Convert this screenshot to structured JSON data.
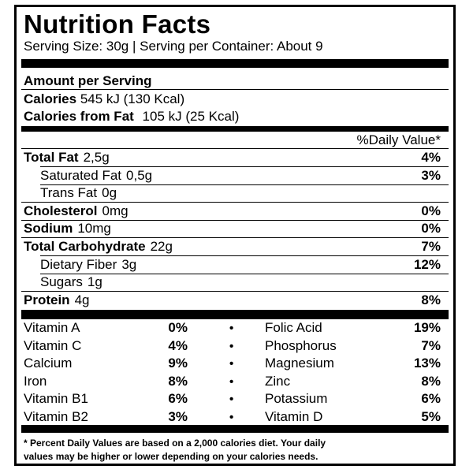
{
  "title": "Nutrition Facts",
  "serving_line": "Serving Size: 30g | Serving per Container: About 9",
  "amount_per_serving": "Amount per Serving",
  "calories": {
    "label": "Calories",
    "value": "545 kJ  (130 Kcal)"
  },
  "calories_from_fat": {
    "label": "Calories from Fat",
    "value": "105 kJ  (25 Kcal)"
  },
  "daily_value_header": "%Daily Value*",
  "nutrients": [
    {
      "label": "Total Fat",
      "amount": "2,5g",
      "pct": "4%",
      "bold": true
    },
    {
      "label": "Saturated Fat",
      "amount": "0,5g",
      "pct": "3%",
      "bold": false
    },
    {
      "label": "Trans Fat",
      "amount": "0g",
      "pct": "",
      "bold": false
    },
    {
      "label": "Cholesterol",
      "amount": "0mg",
      "pct": "0%",
      "bold": true
    },
    {
      "label": "Sodium",
      "amount": "10mg",
      "pct": "0%",
      "bold": true
    },
    {
      "label": "Total Carbohydrate",
      "amount": "22g",
      "pct": "7%",
      "bold": true
    },
    {
      "label": "Dietary Fiber",
      "amount": "3g",
      "pct": "12%",
      "bold": false
    },
    {
      "label": "Sugars",
      "amount": "1g",
      "pct": "",
      "bold": false
    },
    {
      "label": "Protein",
      "amount": "4g",
      "pct": "8%",
      "bold": true
    }
  ],
  "vitamins": [
    {
      "left_name": "Vitamin A",
      "left_pct": "0%",
      "bullet": "•",
      "right_name": "Folic Acid",
      "right_pct": "19%"
    },
    {
      "left_name": "Vitamin C",
      "left_pct": "4%",
      "bullet": "•",
      "right_name": "Phosphorus",
      "right_pct": "7%"
    },
    {
      "left_name": "Calcium",
      "left_pct": "9%",
      "bullet": "•",
      "right_name": "Magnesium",
      "right_pct": "13%"
    },
    {
      "left_name": "Iron",
      "left_pct": "8%",
      "bullet": "•",
      "right_name": "Zinc",
      "right_pct": "8%"
    },
    {
      "left_name": "Vitamin B1",
      "left_pct": "6%",
      "bullet": "•",
      "right_name": "Potassium",
      "right_pct": "6%"
    },
    {
      "left_name": "Vitamin B2",
      "left_pct": "3%",
      "bullet": "•",
      "right_name": "Vitamin D",
      "right_pct": "5%"
    }
  ],
  "footnote": [
    "* Percent Daily Values are based on a 2,000 calories diet. Your daily",
    "values may be higher or lower depending on your calories needs."
  ]
}
